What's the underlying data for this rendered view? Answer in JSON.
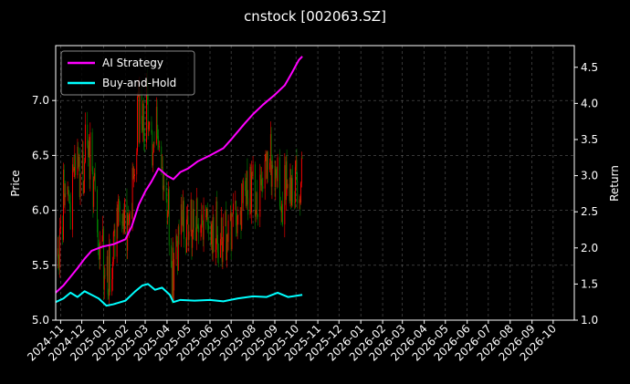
{
  "chart_data": {
    "type": "line",
    "title": "cnstock [002063.SZ]",
    "ylabel_left": "Price",
    "ylabel_right": "Return",
    "xlim": [
      "2024-10-25",
      "2026-10-31"
    ],
    "ylim_left": [
      5.0,
      7.5
    ],
    "ylim_right": [
      1.0,
      4.8
    ],
    "yticks_left": [
      5.0,
      5.5,
      6.0,
      6.5,
      7.0
    ],
    "yticks_left_labels": [
      "5.0",
      "5.5",
      "6.0",
      "6.5",
      "7.0"
    ],
    "yticks_right": [
      1.0,
      1.5,
      2.0,
      2.5,
      3.0,
      3.5,
      4.0,
      4.5
    ],
    "yticks_right_labels": [
      "1.0",
      "1.5",
      "2.0",
      "2.5",
      "3.0",
      "3.5",
      "4.0",
      "4.5"
    ],
    "xticks": [
      "2024-11",
      "2024-12",
      "2025-01",
      "2025-02",
      "2025-03",
      "2025-04",
      "2025-05",
      "2025-06",
      "2025-07",
      "2025-08",
      "2025-09",
      "2025-10",
      "2025-11",
      "2025-12",
      "2026-01",
      "2026-02",
      "2026-03",
      "2026-04",
      "2026-05",
      "2026-06",
      "2026-07",
      "2026-08",
      "2026-09",
      "2026-10"
    ],
    "grid": true,
    "legend_position": "top-left",
    "colors": {
      "up": "#ff0000",
      "down": "#008000",
      "strategy": "#ff00ff",
      "buyhold": "#00ffff"
    },
    "price_series": {
      "type": "candlestick",
      "axis": "left",
      "anchors": [
        [
          "2024-10-25",
          5.45
        ],
        [
          "2024-11-01",
          5.7
        ],
        [
          "2024-11-08",
          6.4
        ],
        [
          "2024-11-15",
          6.0
        ],
        [
          "2024-11-22",
          6.5
        ],
        [
          "2024-11-29",
          6.2
        ],
        [
          "2024-12-06",
          6.55
        ],
        [
          "2024-12-13",
          6.45
        ],
        [
          "2024-12-20",
          6.0
        ],
        [
          "2024-12-27",
          5.7
        ],
        [
          "2025-01-06",
          5.35
        ],
        [
          "2025-01-13",
          5.5
        ],
        [
          "2025-01-20",
          5.9
        ],
        [
          "2025-02-05",
          5.8
        ],
        [
          "2025-02-12",
          6.3
        ],
        [
          "2025-02-19",
          6.9
        ],
        [
          "2025-02-26",
          6.8
        ],
        [
          "2025-03-05",
          7.0
        ],
        [
          "2025-03-12",
          6.5
        ],
        [
          "2025-03-19",
          6.8
        ],
        [
          "2025-03-26",
          6.2
        ],
        [
          "2025-04-03",
          6.0
        ],
        [
          "2025-04-08",
          5.4
        ],
        [
          "2025-04-15",
          5.6
        ],
        [
          "2025-04-25",
          5.9
        ],
        [
          "2025-05-09",
          5.85
        ],
        [
          "2025-05-20",
          6.0
        ],
        [
          "2025-05-30",
          5.75
        ],
        [
          "2025-06-10",
          5.9
        ],
        [
          "2025-06-20",
          5.7
        ],
        [
          "2025-07-01",
          5.85
        ],
        [
          "2025-07-10",
          6.0
        ],
        [
          "2025-07-20",
          6.2
        ],
        [
          "2025-07-30",
          6.25
        ],
        [
          "2025-08-10",
          6.1
        ],
        [
          "2025-08-20",
          6.3
        ],
        [
          "2025-08-28",
          6.5
        ],
        [
          "2025-09-05",
          6.45
        ],
        [
          "2025-09-12",
          6.1
        ],
        [
          "2025-09-19",
          6.3
        ],
        [
          "2025-09-26",
          6.2
        ],
        [
          "2025-10-10",
          6.25
        ]
      ]
    },
    "series": [
      {
        "name": "AI Strategy",
        "axis": "right",
        "color": "#ff00ff",
        "points": [
          [
            "2024-10-25",
            1.38
          ],
          [
            "2024-11-05",
            1.48
          ],
          [
            "2024-11-15",
            1.6
          ],
          [
            "2024-11-25",
            1.72
          ],
          [
            "2024-12-05",
            1.85
          ],
          [
            "2024-12-15",
            1.96
          ],
          [
            "2024-12-31",
            2.02
          ],
          [
            "2025-01-15",
            2.05
          ],
          [
            "2025-02-01",
            2.12
          ],
          [
            "2025-02-10",
            2.3
          ],
          [
            "2025-02-20",
            2.6
          ],
          [
            "2025-03-01",
            2.78
          ],
          [
            "2025-03-10",
            2.92
          ],
          [
            "2025-03-20",
            3.1
          ],
          [
            "2025-04-01",
            3.0
          ],
          [
            "2025-04-10",
            2.95
          ],
          [
            "2025-04-20",
            3.05
          ],
          [
            "2025-05-01",
            3.1
          ],
          [
            "2025-05-15",
            3.2
          ],
          [
            "2025-06-01",
            3.28
          ],
          [
            "2025-06-20",
            3.38
          ],
          [
            "2025-07-01",
            3.5
          ],
          [
            "2025-07-20",
            3.72
          ],
          [
            "2025-08-01",
            3.85
          ],
          [
            "2025-08-15",
            3.98
          ],
          [
            "2025-09-01",
            4.12
          ],
          [
            "2025-09-15",
            4.25
          ],
          [
            "2025-09-25",
            4.42
          ],
          [
            "2025-10-05",
            4.6
          ],
          [
            "2025-10-10",
            4.65
          ]
        ]
      },
      {
        "name": "Buy-and-Hold",
        "axis": "right",
        "color": "#00ffff",
        "points": [
          [
            "2024-10-25",
            1.25
          ],
          [
            "2024-11-05",
            1.3
          ],
          [
            "2024-11-15",
            1.38
          ],
          [
            "2024-11-25",
            1.32
          ],
          [
            "2024-12-05",
            1.4
          ],
          [
            "2024-12-15",
            1.35
          ],
          [
            "2024-12-25",
            1.3
          ],
          [
            "2025-01-05",
            1.2
          ],
          [
            "2025-01-15",
            1.22
          ],
          [
            "2025-02-01",
            1.27
          ],
          [
            "2025-02-15",
            1.4
          ],
          [
            "2025-02-25",
            1.48
          ],
          [
            "2025-03-05",
            1.5
          ],
          [
            "2025-03-15",
            1.42
          ],
          [
            "2025-03-25",
            1.45
          ],
          [
            "2025-04-05",
            1.35
          ],
          [
            "2025-04-10",
            1.25
          ],
          [
            "2025-04-20",
            1.28
          ],
          [
            "2025-05-10",
            1.27
          ],
          [
            "2025-06-01",
            1.28
          ],
          [
            "2025-06-20",
            1.26
          ],
          [
            "2025-07-10",
            1.3
          ],
          [
            "2025-08-01",
            1.33
          ],
          [
            "2025-08-20",
            1.32
          ],
          [
            "2025-09-05",
            1.38
          ],
          [
            "2025-09-20",
            1.32
          ],
          [
            "2025-10-10",
            1.35
          ]
        ]
      }
    ]
  }
}
